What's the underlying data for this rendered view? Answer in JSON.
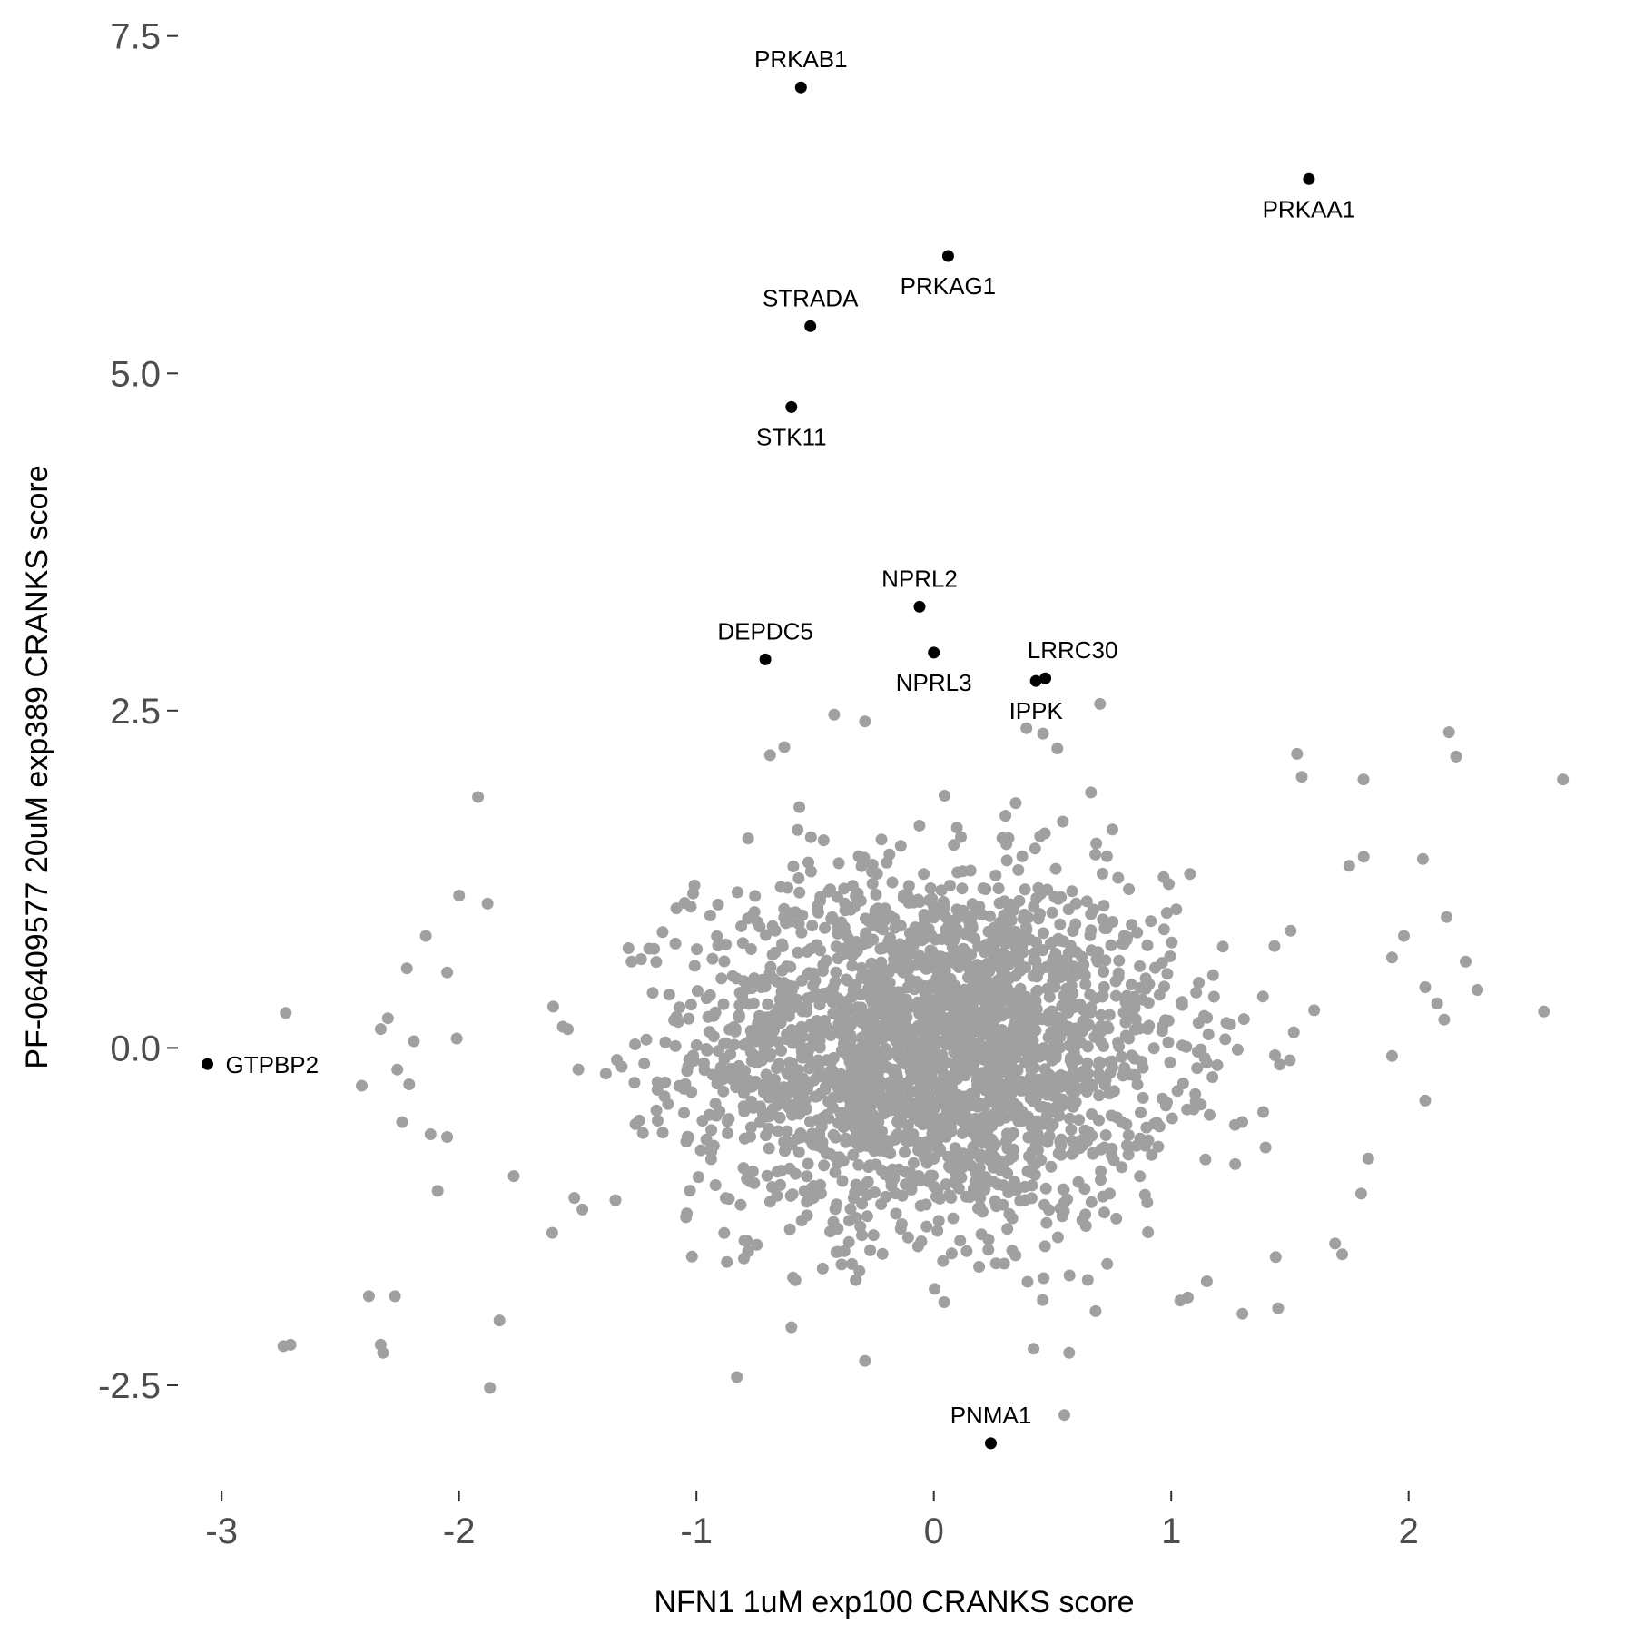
{
  "chart_data": {
    "type": "scatter",
    "title": "",
    "xlabel": "NFN1 1uM exp100 CRANKS score",
    "ylabel": "PF-06409577 20uM exp389 CRANKS score",
    "xlim": [
      -3.15,
      2.72
    ],
    "ylim": [
      -3.2,
      7.7
    ],
    "x_ticks": [
      -3,
      -2,
      -1,
      0,
      1,
      2
    ],
    "y_ticks": [
      -2.5,
      0.0,
      2.5,
      5.0,
      7.5
    ],
    "x_tick_labels": [
      "-3",
      "-2",
      "-1",
      "0",
      "1",
      "2"
    ],
    "y_tick_labels": [
      "-2.5",
      "0.0",
      "2.5",
      "5.0",
      "7.5"
    ],
    "grid": false,
    "legend": "none",
    "background_cloud": {
      "description_color": "#a0a0a0",
      "center": [
        0.0,
        0.0
      ],
      "sd": [
        0.5,
        0.65
      ],
      "count": 2600,
      "outliers": [
        [
          -2.73,
          0.26
        ],
        [
          -2.3,
          0.22
        ],
        [
          -2.33,
          0.14
        ],
        [
          -2.19,
          0.05
        ],
        [
          -2.01,
          0.07
        ],
        [
          -2.26,
          -0.16
        ],
        [
          -2.41,
          -0.28
        ],
        [
          -2.24,
          -0.55
        ],
        [
          -2.21,
          -0.27
        ],
        [
          -2.12,
          -0.64
        ],
        [
          -1.92,
          1.86
        ],
        [
          -2.0,
          1.13
        ],
        [
          -1.88,
          1.07
        ],
        [
          -2.14,
          0.83
        ],
        [
          -2.22,
          0.59
        ],
        [
          -2.05,
          0.56
        ],
        [
          -2.38,
          -1.84
        ],
        [
          -2.27,
          -1.84
        ],
        [
          -2.71,
          -2.2
        ],
        [
          -2.74,
          -2.21
        ],
        [
          -2.33,
          -2.2
        ],
        [
          -2.32,
          -2.26
        ],
        [
          -1.87,
          -2.52
        ],
        [
          -1.83,
          -2.02
        ],
        [
          -2.09,
          -1.06
        ],
        [
          -2.05,
          -0.66
        ],
        [
          -1.77,
          -0.95
        ],
        [
          -0.83,
          -2.44
        ],
        [
          -0.29,
          -2.32
        ],
        [
          0.42,
          -2.23
        ],
        [
          0.57,
          -2.26
        ],
        [
          0.55,
          -2.72
        ],
        [
          -0.69,
          2.17
        ],
        [
          -0.63,
          2.23
        ],
        [
          -0.42,
          2.47
        ],
        [
          -0.29,
          2.42
        ],
        [
          0.7,
          2.55
        ],
        [
          0.39,
          2.37
        ],
        [
          0.46,
          2.33
        ],
        [
          0.52,
          2.22
        ],
        [
          1.53,
          2.18
        ],
        [
          1.55,
          2.01
        ],
        [
          1.81,
          1.99
        ],
        [
          2.17,
          2.34
        ],
        [
          2.2,
          2.16
        ],
        [
          2.65,
          1.99
        ],
        [
          2.57,
          0.27
        ],
        [
          2.29,
          0.43
        ],
        [
          2.24,
          0.64
        ],
        [
          2.15,
          0.21
        ],
        [
          2.12,
          0.33
        ],
        [
          2.07,
          0.45
        ],
        [
          1.93,
          0.67
        ],
        [
          1.75,
          1.35
        ],
        [
          2.06,
          1.4
        ],
        [
          2.16,
          0.97
        ],
        [
          1.98,
          0.83
        ],
        [
          2.07,
          -0.39
        ],
        [
          1.93,
          -0.06
        ],
        [
          1.83,
          -0.82
        ],
        [
          1.8,
          -1.08
        ],
        [
          1.69,
          -1.45
        ],
        [
          1.72,
          -1.53
        ],
        [
          1.44,
          -1.55
        ],
        [
          1.45,
          -1.93
        ],
        [
          1.3,
          -1.97
        ],
        [
          1.15,
          -1.73
        ],
        [
          1.07,
          -1.85
        ],
        [
          -0.8,
          -1.56
        ],
        [
          -0.6,
          -2.07
        ]
      ]
    },
    "highlighted": [
      {
        "label": "PRKAB1",
        "x": -0.56,
        "y": 7.12,
        "label_pos": "above"
      },
      {
        "label": "PRKAA1",
        "x": 1.58,
        "y": 6.44,
        "label_pos": "below"
      },
      {
        "label": "PRKAG1",
        "x": 0.06,
        "y": 5.87,
        "label_pos": "below"
      },
      {
        "label": "STRADA",
        "x": -0.52,
        "y": 5.35,
        "label_pos": "above"
      },
      {
        "label": "STK11",
        "x": -0.6,
        "y": 4.75,
        "label_pos": "below"
      },
      {
        "label": "NPRL2",
        "x": -0.06,
        "y": 3.27,
        "label_pos": "above"
      },
      {
        "label": "NPRL3",
        "x": 0.0,
        "y": 2.93,
        "label_pos": "below"
      },
      {
        "label": "DEPDC5",
        "x": -0.71,
        "y": 2.88,
        "label_pos": "above"
      },
      {
        "label": "LRRC30",
        "x": 0.47,
        "y": 2.74,
        "label_pos": "above-right"
      },
      {
        "label": "IPPK",
        "x": 0.43,
        "y": 2.72,
        "label_pos": "below"
      },
      {
        "label": "GTPBP2",
        "x": -3.06,
        "y": -0.12,
        "label_pos": "right"
      },
      {
        "label": "PNMA1",
        "x": 0.24,
        "y": -2.93,
        "label_pos": "above"
      }
    ],
    "colors": {
      "background_points": "#a0a0a0",
      "highlight_points": "#000000",
      "tick_text": "#4d4d4d",
      "tick_marks": "#333333"
    }
  }
}
